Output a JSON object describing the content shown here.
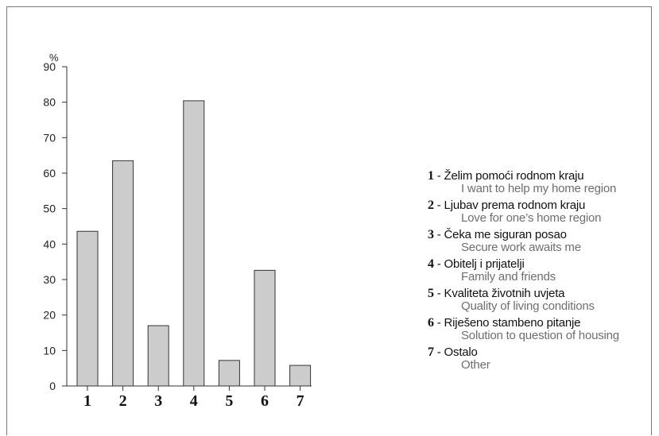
{
  "chart_data": {
    "type": "bar",
    "unit_label": "%",
    "categories": [
      "1",
      "2",
      "3",
      "4",
      "5",
      "6",
      "7"
    ],
    "values": [
      43.6,
      63.5,
      17.0,
      80.4,
      7.2,
      32.6,
      5.8
    ],
    "ylim": [
      0,
      90
    ],
    "yticks": [
      0,
      10,
      20,
      30,
      40,
      50,
      60,
      70,
      80,
      90
    ],
    "grid": false,
    "bar_color": "#cccccc",
    "bar_stroke": "#333333",
    "legend": [
      {
        "num": "1",
        "sep": " - ",
        "label_hr": "Želim pomoći rodnom kraju",
        "label_en": "I want to help my home region"
      },
      {
        "num": "2",
        "sep": " - ",
        "label_hr": "Ljubav prema rodnom kraju",
        "label_en": "Love for one’s home region"
      },
      {
        "num": "3",
        "sep": " - ",
        "label_hr": "Čeka me siguran posao",
        "label_en": "Secure work awaits me"
      },
      {
        "num": "4",
        "sep": " - ",
        "label_hr": "Obitelj i prijatelji",
        "label_en": "Family and friends"
      },
      {
        "num": "5",
        "sep": " - ",
        "label_hr": "Kvaliteta životnih uvjeta",
        "label_en": "Quality of living conditions"
      },
      {
        "num": "6",
        "sep": " - ",
        "label_hr": "Riješeno stambeno pitanje",
        "label_en": "Solution to question of housing"
      },
      {
        "num": "7",
        "sep": " - ",
        "label_hr": "Ostalo",
        "label_en": "Other"
      }
    ],
    "legend_position": "right"
  }
}
